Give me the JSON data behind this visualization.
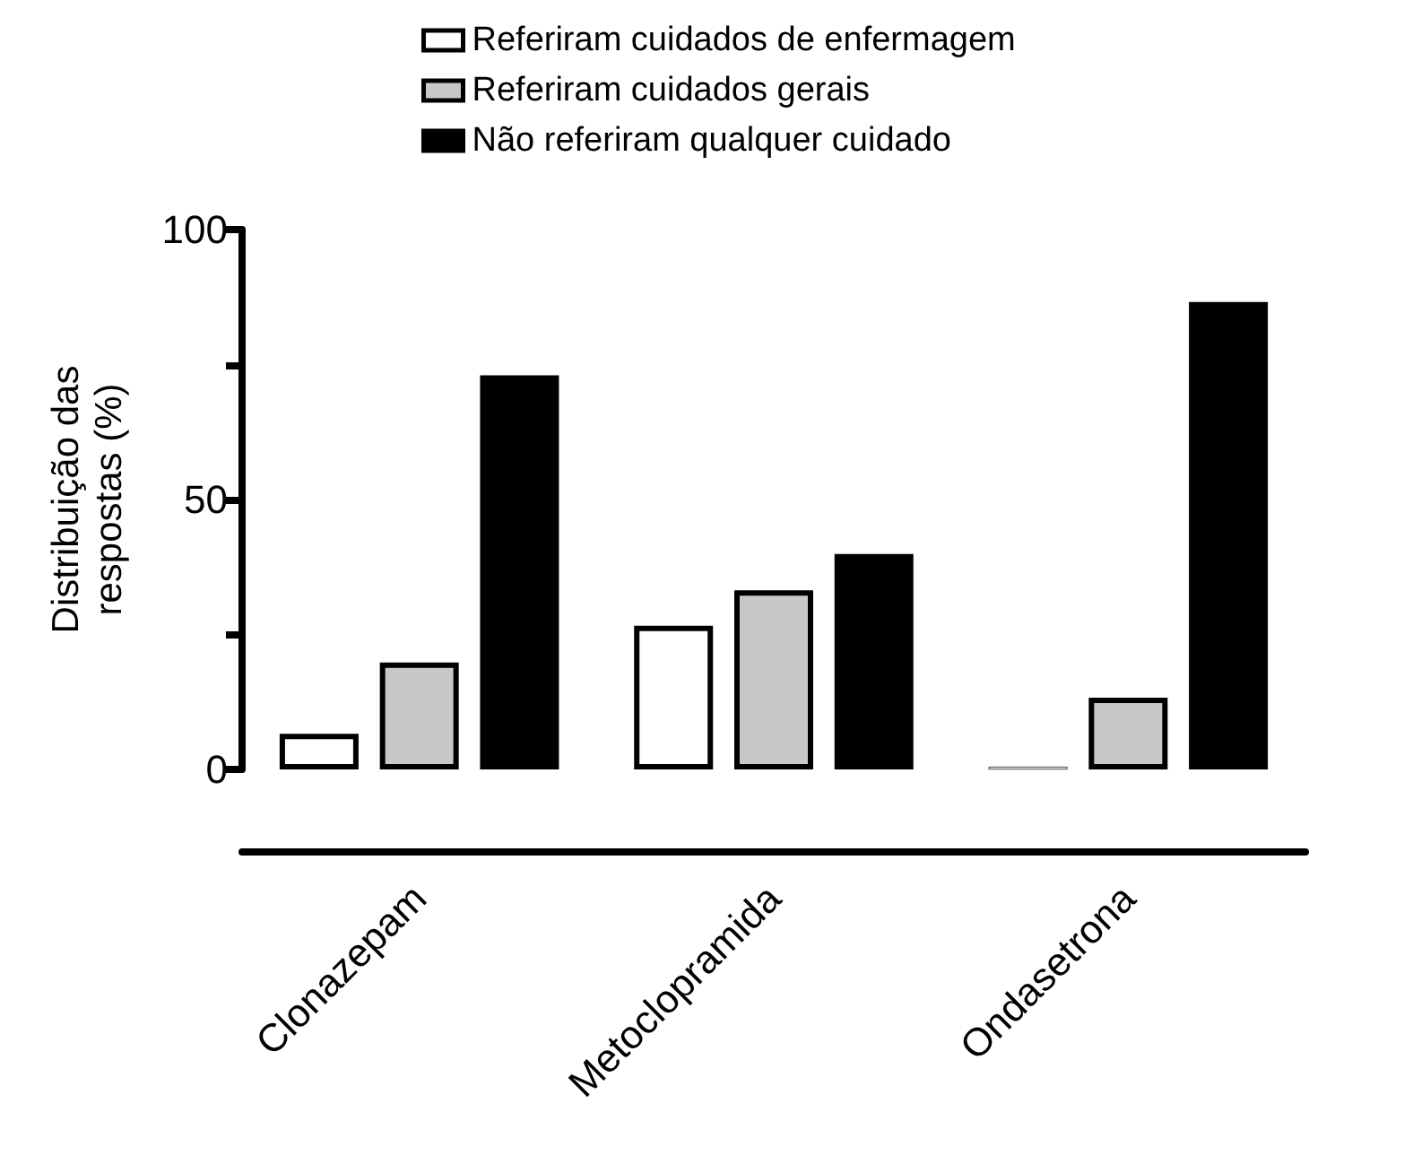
{
  "chart_data": {
    "type": "bar",
    "ylabel": "Distribuição das\nrespostas (%)",
    "categories": [
      "Clonazepam",
      "Metoclopramida",
      "Ondasetrona"
    ],
    "series": [
      {
        "name": "Referiram cuidados de enfermagem",
        "color": "#ffffff",
        "values": [
          6.6,
          26.6,
          0.5
        ]
      },
      {
        "name": "Referiram cuidados gerais",
        "color": "#c8c8c8",
        "values": [
          19.8,
          33.2,
          13.3
        ]
      },
      {
        "name": "Não referiram qualquer cuidado",
        "color": "#000000",
        "values": [
          73,
          39.9,
          86.6
        ]
      }
    ],
    "ylim": [
      0,
      100
    ],
    "yticks": [
      0,
      {
        "value": 25,
        "label": null
      },
      50,
      {
        "value": 75,
        "label": null
      },
      100
    ],
    "grid": false,
    "legend": "top"
  }
}
